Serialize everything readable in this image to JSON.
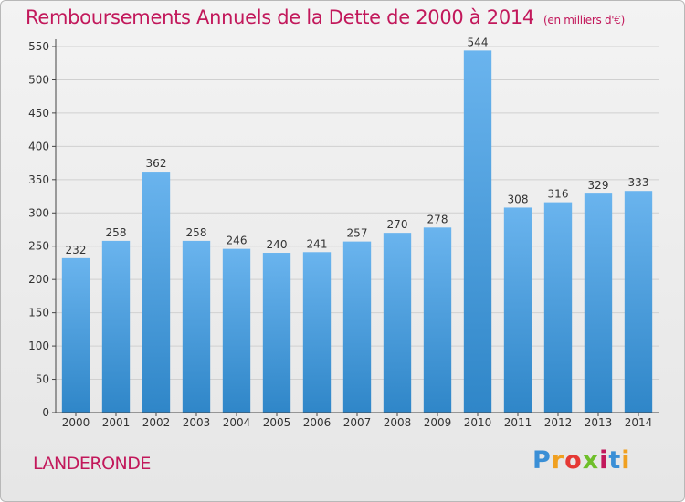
{
  "title": "Remboursements Annuels de la Dette de 2000 à 2014",
  "unit_note": "(en milliers d'€)",
  "commune": "LANDERONDE",
  "logo_text": "Proxiti",
  "colors": {
    "title": "#c2185b",
    "bar_top": "#6ab4ee",
    "bar_bottom": "#2f86c8",
    "grid": "#d0d0d0",
    "axis": "#444444"
  },
  "chart_data": {
    "type": "bar",
    "categories": [
      "2000",
      "2001",
      "2002",
      "2003",
      "2004",
      "2005",
      "2006",
      "2007",
      "2008",
      "2009",
      "2010",
      "2011",
      "2012",
      "2013",
      "2014"
    ],
    "values": [
      232,
      258,
      362,
      258,
      246,
      240,
      241,
      257,
      270,
      278,
      544,
      308,
      316,
      329,
      333
    ],
    "ylim": [
      0,
      550
    ],
    "yticks": [
      0,
      50,
      100,
      150,
      200,
      250,
      300,
      350,
      400,
      450,
      500,
      550
    ],
    "grid": true,
    "data_labels": true
  }
}
